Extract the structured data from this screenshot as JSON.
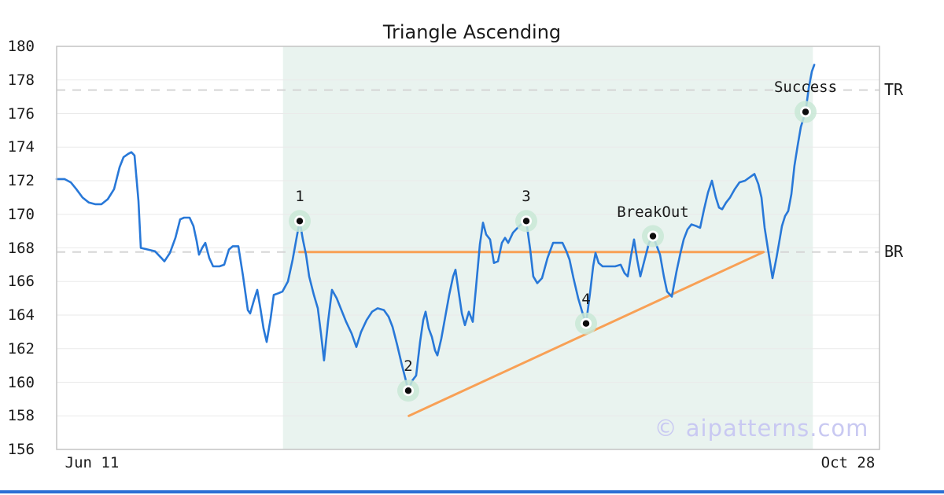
{
  "chart_data": {
    "type": "line",
    "title": "Triangle Ascending",
    "watermark": "© aipatterns.com",
    "ylim": [
      156,
      180
    ],
    "y_ticks": [
      156,
      158,
      160,
      162,
      164,
      166,
      168,
      170,
      172,
      174,
      176,
      178,
      180
    ],
    "x_ticks": [
      {
        "label": "Jun 11",
        "x_pct": 4.3
      },
      {
        "label": "Oct 28",
        "x_pct": 96.2
      }
    ],
    "levels": [
      {
        "label": "TR",
        "price": 177.4
      },
      {
        "label": "BR",
        "price": 167.75
      }
    ],
    "trendlines": {
      "resistance": {
        "from": [
          29.5,
          167.75
        ],
        "to": [
          85.9,
          167.75
        ]
      },
      "support": {
        "from": [
          42.8,
          158.0
        ],
        "to": [
          85.9,
          167.75
        ]
      }
    },
    "pattern_region_pct": [
      27.5,
      91.9
    ],
    "annotations": [
      {
        "label": "1",
        "x_pct": 29.54,
        "price": 169.6
      },
      {
        "label": "2",
        "x_pct": 42.73,
        "price": 159.5
      },
      {
        "label": "3",
        "x_pct": 57.07,
        "price": 169.6
      },
      {
        "label": "4",
        "x_pct": 64.34,
        "price": 163.5
      },
      {
        "label": "BreakOut",
        "x_pct": 72.47,
        "price": 168.7
      },
      {
        "label": "Success",
        "x_pct": 91.01,
        "price": 176.1
      }
    ],
    "series": {
      "name": "price",
      "points": [
        [
          0,
          172.1
        ],
        [
          0.96,
          172.1
        ],
        [
          1.72,
          171.9
        ],
        [
          2.39,
          171.5
        ],
        [
          3.15,
          171.0
        ],
        [
          3.92,
          170.7
        ],
        [
          4.68,
          170.6
        ],
        [
          5.45,
          170.6
        ],
        [
          6.21,
          170.9
        ],
        [
          6.98,
          171.5
        ],
        [
          7.65,
          172.8
        ],
        [
          8.13,
          173.4
        ],
        [
          8.7,
          173.6
        ],
        [
          9.08,
          173.7
        ],
        [
          9.46,
          173.5
        ],
        [
          9.94,
          170.8
        ],
        [
          10.23,
          168.0
        ],
        [
          11.09,
          167.9
        ],
        [
          11.95,
          167.8
        ],
        [
          12.72,
          167.4
        ],
        [
          13.1,
          167.2
        ],
        [
          13.77,
          167.7
        ],
        [
          14.44,
          168.6
        ],
        [
          15.01,
          169.7
        ],
        [
          15.49,
          169.8
        ],
        [
          16.16,
          169.8
        ],
        [
          16.63,
          169.3
        ],
        [
          17.02,
          168.4
        ],
        [
          17.3,
          167.6
        ],
        [
          17.69,
          168.0
        ],
        [
          18.07,
          168.3
        ],
        [
          18.55,
          167.4
        ],
        [
          19.02,
          166.9
        ],
        [
          19.79,
          166.9
        ],
        [
          20.36,
          167.0
        ],
        [
          20.94,
          167.9
        ],
        [
          21.41,
          168.1
        ],
        [
          22.08,
          168.1
        ],
        [
          22.66,
          166.3
        ],
        [
          23.23,
          164.3
        ],
        [
          23.52,
          164.1
        ],
        [
          23.99,
          164.9
        ],
        [
          24.38,
          165.5
        ],
        [
          24.76,
          164.4
        ],
        [
          25.14,
          163.2
        ],
        [
          25.53,
          162.4
        ],
        [
          26.0,
          163.8
        ],
        [
          26.39,
          165.2
        ],
        [
          26.96,
          165.3
        ],
        [
          27.44,
          165.4
        ],
        [
          28.11,
          166.0
        ],
        [
          28.68,
          167.3
        ],
        [
          29.16,
          168.6
        ],
        [
          29.54,
          169.6
        ],
        [
          29.92,
          168.5
        ],
        [
          30.31,
          167.6
        ],
        [
          30.69,
          166.3
        ],
        [
          31.26,
          165.2
        ],
        [
          31.74,
          164.4
        ],
        [
          32.12,
          162.9
        ],
        [
          32.5,
          161.3
        ],
        [
          32.98,
          163.6
        ],
        [
          33.46,
          165.5
        ],
        [
          34.03,
          165.0
        ],
        [
          34.61,
          164.3
        ],
        [
          35.18,
          163.6
        ],
        [
          35.85,
          162.9
        ],
        [
          36.42,
          162.1
        ],
        [
          37.0,
          163.0
        ],
        [
          37.67,
          163.7
        ],
        [
          38.34,
          164.2
        ],
        [
          39.01,
          164.4
        ],
        [
          39.77,
          164.3
        ],
        [
          40.34,
          163.9
        ],
        [
          40.82,
          163.3
        ],
        [
          41.4,
          162.2
        ],
        [
          41.97,
          161.0
        ],
        [
          42.45,
          160.1
        ],
        [
          42.73,
          159.5
        ],
        [
          43.21,
          160.1
        ],
        [
          43.69,
          160.4
        ],
        [
          44.17,
          162.4
        ],
        [
          44.55,
          163.7
        ],
        [
          44.84,
          164.2
        ],
        [
          45.22,
          163.2
        ],
        [
          45.6,
          162.7
        ],
        [
          45.98,
          161.9
        ],
        [
          46.27,
          161.6
        ],
        [
          46.75,
          162.6
        ],
        [
          47.23,
          163.9
        ],
        [
          47.71,
          165.2
        ],
        [
          48.18,
          166.3
        ],
        [
          48.47,
          166.7
        ],
        [
          48.85,
          165.4
        ],
        [
          49.24,
          164.1
        ],
        [
          49.62,
          163.4
        ],
        [
          50.1,
          164.2
        ],
        [
          50.57,
          163.6
        ],
        [
          50.96,
          165.6
        ],
        [
          51.43,
          168.2
        ],
        [
          51.82,
          169.5
        ],
        [
          52.2,
          168.8
        ],
        [
          52.68,
          168.5
        ],
        [
          53.15,
          167.1
        ],
        [
          53.63,
          167.2
        ],
        [
          54.11,
          168.3
        ],
        [
          54.49,
          168.6
        ],
        [
          54.88,
          168.3
        ],
        [
          55.45,
          168.9
        ],
        [
          56.21,
          169.3
        ],
        [
          56.69,
          169.5
        ],
        [
          57.07,
          169.6
        ],
        [
          57.55,
          167.9
        ],
        [
          57.93,
          166.3
        ],
        [
          58.41,
          165.9
        ],
        [
          58.99,
          166.2
        ],
        [
          59.66,
          167.4
        ],
        [
          60.33,
          168.3
        ],
        [
          61.0,
          168.3
        ],
        [
          61.47,
          168.3
        ],
        [
          61.95,
          167.8
        ],
        [
          62.33,
          167.3
        ],
        [
          62.81,
          166.2
        ],
        [
          63.38,
          165.0
        ],
        [
          63.86,
          164.2
        ],
        [
          64.34,
          163.5
        ],
        [
          64.82,
          165.3
        ],
        [
          65.2,
          166.9
        ],
        [
          65.49,
          167.7
        ],
        [
          65.87,
          167.1
        ],
        [
          66.35,
          166.9
        ],
        [
          67.11,
          166.9
        ],
        [
          67.88,
          166.9
        ],
        [
          68.55,
          167.0
        ],
        [
          69.02,
          166.5
        ],
        [
          69.41,
          166.3
        ],
        [
          69.79,
          167.5
        ],
        [
          70.17,
          168.5
        ],
        [
          70.55,
          167.3
        ],
        [
          70.94,
          166.3
        ],
        [
          71.41,
          167.2
        ],
        [
          71.99,
          168.3
        ],
        [
          72.47,
          168.7
        ],
        [
          72.94,
          168.1
        ],
        [
          73.33,
          167.6
        ],
        [
          73.8,
          166.3
        ],
        [
          74.19,
          165.4
        ],
        [
          74.76,
          165.1
        ],
        [
          75.33,
          166.6
        ],
        [
          75.81,
          167.7
        ],
        [
          76.2,
          168.5
        ],
        [
          76.67,
          169.1
        ],
        [
          77.15,
          169.4
        ],
        [
          77.72,
          169.3
        ],
        [
          78.2,
          169.2
        ],
        [
          78.68,
          170.3
        ],
        [
          79.16,
          171.3
        ],
        [
          79.64,
          172.0
        ],
        [
          80.11,
          171.0
        ],
        [
          80.5,
          170.4
        ],
        [
          80.88,
          170.3
        ],
        [
          81.36,
          170.7
        ],
        [
          81.84,
          171.0
        ],
        [
          82.41,
          171.5
        ],
        [
          82.98,
          171.9
        ],
        [
          83.65,
          172.0
        ],
        [
          84.23,
          172.2
        ],
        [
          84.8,
          172.4
        ],
        [
          85.28,
          171.8
        ],
        [
          85.66,
          171.0
        ],
        [
          86.04,
          169.2
        ],
        [
          86.52,
          167.7
        ],
        [
          87.0,
          166.2
        ],
        [
          87.48,
          167.4
        ],
        [
          87.76,
          168.2
        ],
        [
          88.15,
          169.3
        ],
        [
          88.53,
          169.9
        ],
        [
          88.91,
          170.2
        ],
        [
          89.29,
          171.2
        ],
        [
          89.67,
          172.9
        ],
        [
          90.06,
          174.1
        ],
        [
          90.44,
          175.2
        ],
        [
          91.01,
          176.1
        ],
        [
          91.4,
          177.5
        ],
        [
          91.78,
          178.5
        ],
        [
          92.07,
          178.9
        ]
      ]
    },
    "colors": {
      "line": "#2878D8",
      "trend": "#F8A055",
      "region": "#E9F3EF",
      "marker_halo": "#C9E7D6",
      "marker_dot": "#0D0D0D",
      "level_dash": "#D5D5D5",
      "grid": "#EAEAEA",
      "frame": "#C4C4C4",
      "text": "#1A1A1A",
      "watermark": "#C9C9F2",
      "bottom_bar": "#2A6FD4"
    }
  }
}
